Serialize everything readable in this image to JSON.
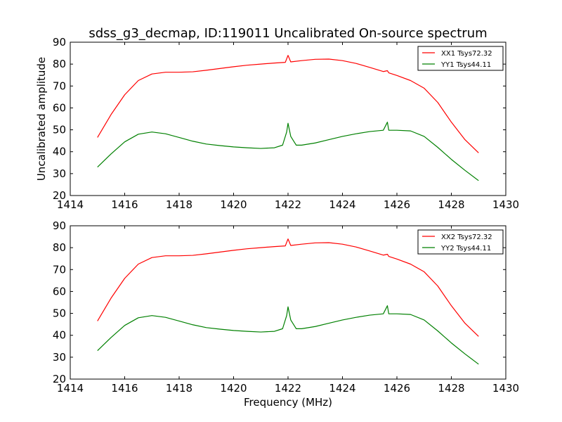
{
  "title": "sdss_g3_decmap, ID:119011 Uncalibrated On-source spectrum",
  "chart_data": [
    {
      "type": "line",
      "title": "sdss_g3_decmap, ID:119011 Uncalibrated On-source spectrum",
      "xlabel": "",
      "ylabel": "Uncalibrated amplitude",
      "xlim": [
        1414,
        1430
      ],
      "ylim": [
        20,
        90
      ],
      "xticks": [
        1414,
        1416,
        1418,
        1420,
        1422,
        1424,
        1426,
        1428,
        1430
      ],
      "yticks": [
        20,
        30,
        40,
        50,
        60,
        70,
        80,
        90
      ],
      "grid": false,
      "legend_position": "top-right",
      "series": [
        {
          "name": "XX1 Tsys72.32",
          "color": "#ff0000",
          "x": [
            1415.0,
            1415.5,
            1416.0,
            1416.5,
            1417.0,
            1417.5,
            1418.0,
            1418.5,
            1419.0,
            1419.5,
            1420.0,
            1420.5,
            1421.0,
            1421.5,
            1421.9,
            1422.0,
            1422.1,
            1422.5,
            1423.0,
            1423.5,
            1424.0,
            1424.5,
            1425.0,
            1425.5,
            1425.65,
            1425.7,
            1426.0,
            1426.5,
            1427.0,
            1427.5,
            1428.0,
            1428.5,
            1429.0
          ],
          "y": [
            46.5,
            57.0,
            66.0,
            72.5,
            75.5,
            76.3,
            76.3,
            76.5,
            77.2,
            78.0,
            78.8,
            79.5,
            80.0,
            80.5,
            80.8,
            84.0,
            81.0,
            81.6,
            82.2,
            82.3,
            81.6,
            80.3,
            78.5,
            76.6,
            77.0,
            76.0,
            74.8,
            72.5,
            69.0,
            62.5,
            53.5,
            45.5,
            39.5
          ]
        },
        {
          "name": "YY1 Tsys44.11",
          "color": "#008000",
          "x": [
            1415.0,
            1415.5,
            1416.0,
            1416.5,
            1417.0,
            1417.5,
            1418.0,
            1418.5,
            1419.0,
            1419.5,
            1420.0,
            1420.5,
            1421.0,
            1421.5,
            1421.8,
            1421.95,
            1422.0,
            1422.1,
            1422.3,
            1422.5,
            1423.0,
            1423.5,
            1424.0,
            1424.5,
            1425.0,
            1425.5,
            1425.65,
            1425.7,
            1426.0,
            1426.5,
            1427.0,
            1427.5,
            1428.0,
            1428.5,
            1429.0
          ],
          "y": [
            33.0,
            39.0,
            44.5,
            48.0,
            49.0,
            48.2,
            46.5,
            44.8,
            43.5,
            42.8,
            42.2,
            41.8,
            41.5,
            41.8,
            43.0,
            49.0,
            53.0,
            47.0,
            43.0,
            43.0,
            44.0,
            45.5,
            47.0,
            48.2,
            49.2,
            49.8,
            53.5,
            49.8,
            49.8,
            49.5,
            47.0,
            42.0,
            36.5,
            31.5,
            26.8
          ]
        }
      ]
    },
    {
      "type": "line",
      "title": "",
      "xlabel": "Frequency (MHz)",
      "ylabel": "",
      "xlim": [
        1414,
        1430
      ],
      "ylim": [
        20,
        90
      ],
      "xticks": [
        1414,
        1416,
        1418,
        1420,
        1422,
        1424,
        1426,
        1428,
        1430
      ],
      "yticks": [
        20,
        30,
        40,
        50,
        60,
        70,
        80,
        90
      ],
      "grid": false,
      "legend_position": "top-right",
      "series": [
        {
          "name": "XX2 Tsys72.32",
          "color": "#ff0000",
          "x": [
            1415.0,
            1415.5,
            1416.0,
            1416.5,
            1417.0,
            1417.5,
            1418.0,
            1418.5,
            1419.0,
            1419.5,
            1420.0,
            1420.5,
            1421.0,
            1421.5,
            1421.9,
            1422.0,
            1422.1,
            1422.5,
            1423.0,
            1423.5,
            1424.0,
            1424.5,
            1425.0,
            1425.5,
            1425.65,
            1425.7,
            1426.0,
            1426.5,
            1427.0,
            1427.5,
            1428.0,
            1428.5,
            1429.0
          ],
          "y": [
            46.5,
            57.0,
            66.0,
            72.5,
            75.5,
            76.3,
            76.3,
            76.5,
            77.2,
            78.0,
            78.8,
            79.5,
            80.0,
            80.5,
            80.8,
            84.0,
            81.0,
            81.6,
            82.2,
            82.3,
            81.6,
            80.3,
            78.5,
            76.6,
            77.0,
            76.0,
            74.8,
            72.5,
            69.0,
            62.5,
            53.5,
            45.5,
            39.5
          ]
        },
        {
          "name": "YY2 Tsys44.11",
          "color": "#008000",
          "x": [
            1415.0,
            1415.5,
            1416.0,
            1416.5,
            1417.0,
            1417.5,
            1418.0,
            1418.5,
            1419.0,
            1419.5,
            1420.0,
            1420.5,
            1421.0,
            1421.5,
            1421.8,
            1421.95,
            1422.0,
            1422.1,
            1422.3,
            1422.5,
            1423.0,
            1423.5,
            1424.0,
            1424.5,
            1425.0,
            1425.5,
            1425.65,
            1425.7,
            1426.0,
            1426.5,
            1427.0,
            1427.5,
            1428.0,
            1428.5,
            1429.0
          ],
          "y": [
            33.0,
            39.0,
            44.5,
            48.0,
            49.0,
            48.2,
            46.5,
            44.8,
            43.5,
            42.8,
            42.2,
            41.8,
            41.5,
            41.8,
            43.0,
            49.0,
            53.0,
            47.0,
            43.0,
            43.0,
            44.0,
            45.5,
            47.0,
            48.2,
            49.2,
            49.8,
            53.5,
            49.8,
            49.8,
            49.5,
            47.0,
            42.0,
            36.5,
            31.5,
            26.8
          ]
        }
      ]
    }
  ]
}
